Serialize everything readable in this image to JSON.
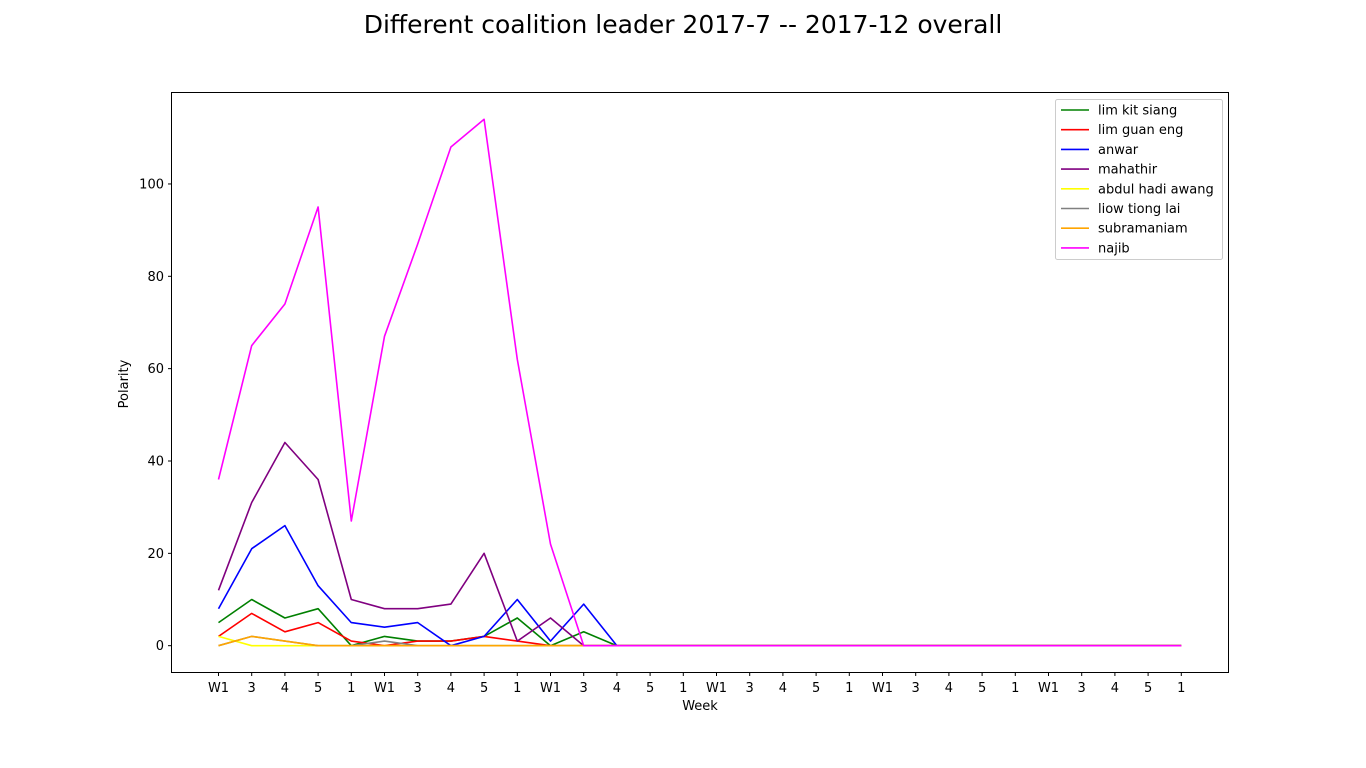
{
  "chart_data": {
    "type": "line",
    "title": "Different coalition leader 2017-7 -- 2017-12 overall",
    "xlabel": "Week",
    "ylabel": "Polarity",
    "x": [
      "W1",
      "3",
      "4",
      "5",
      "1",
      "W1",
      "3",
      "4",
      "5",
      "1",
      "W1",
      "3",
      "4",
      "5",
      "1",
      "W1",
      "3",
      "4",
      "5",
      "1",
      "W1",
      "3",
      "4",
      "5",
      "1",
      "W1",
      "3",
      "4",
      "5",
      "1"
    ],
    "yticks": [
      0,
      20,
      40,
      60,
      80,
      100
    ],
    "ylim": [
      -5.7,
      119.7
    ],
    "grid": false,
    "legend_position": "top-right",
    "series": [
      {
        "name": "lim kit siang",
        "color": "#008000",
        "values": [
          5,
          10,
          6,
          8,
          0,
          2,
          1,
          1,
          2,
          6,
          0,
          3,
          0,
          0,
          0,
          0,
          0,
          0,
          0,
          0,
          0,
          0,
          0,
          0,
          0,
          0,
          0,
          0,
          0,
          0
        ]
      },
      {
        "name": "lim guan eng",
        "color": "#ff0000",
        "values": [
          2,
          7,
          3,
          5,
          1,
          0,
          1,
          1,
          2,
          1,
          0,
          0,
          0,
          0,
          0,
          0,
          0,
          0,
          0,
          0,
          0,
          0,
          0,
          0,
          0,
          0,
          0,
          0,
          0,
          0
        ]
      },
      {
        "name": "anwar",
        "color": "#0000ff",
        "values": [
          8,
          21,
          26,
          13,
          5,
          4,
          5,
          0,
          2,
          10,
          1,
          9,
          0,
          0,
          0,
          0,
          0,
          0,
          0,
          0,
          0,
          0,
          0,
          0,
          0,
          0,
          0,
          0,
          0,
          0
        ]
      },
      {
        "name": "mahathir",
        "color": "#800080",
        "values": [
          12,
          31,
          44,
          36,
          10,
          8,
          8,
          9,
          20,
          1,
          6,
          0,
          0,
          0,
          0,
          0,
          0,
          0,
          0,
          0,
          0,
          0,
          0,
          0,
          0,
          0,
          0,
          0,
          0,
          0
        ]
      },
      {
        "name": "abdul hadi awang",
        "color": "#ffff00",
        "values": [
          2,
          0,
          0,
          0,
          0,
          0,
          0,
          0,
          0,
          0,
          0,
          0,
          0,
          0,
          0,
          0,
          0,
          0,
          0,
          0,
          0,
          0,
          0,
          0,
          0,
          0,
          0,
          0,
          0,
          0
        ]
      },
      {
        "name": "liow tiong lai",
        "color": "#808080",
        "values": [
          0,
          2,
          1,
          0,
          0,
          1,
          0,
          0,
          0,
          0,
          0,
          0,
          0,
          0,
          0,
          0,
          0,
          0,
          0,
          0,
          0,
          0,
          0,
          0,
          0,
          0,
          0,
          0,
          0,
          0
        ]
      },
      {
        "name": "subramaniam",
        "color": "#ffa500",
        "values": [
          0,
          2,
          1,
          0,
          0,
          0,
          0,
          0,
          0,
          0,
          0,
          0,
          0,
          0,
          0,
          0,
          0,
          0,
          0,
          0,
          0,
          0,
          0,
          0,
          0,
          0,
          0,
          0,
          0,
          0
        ]
      },
      {
        "name": "najib",
        "color": "#ff00ff",
        "values": [
          36,
          65,
          74,
          95,
          27,
          67,
          87,
          108,
          114,
          62,
          22,
          0,
          0,
          0,
          0,
          0,
          0,
          0,
          0,
          0,
          0,
          0,
          0,
          0,
          0,
          0,
          0,
          0,
          0,
          0
        ]
      }
    ]
  }
}
